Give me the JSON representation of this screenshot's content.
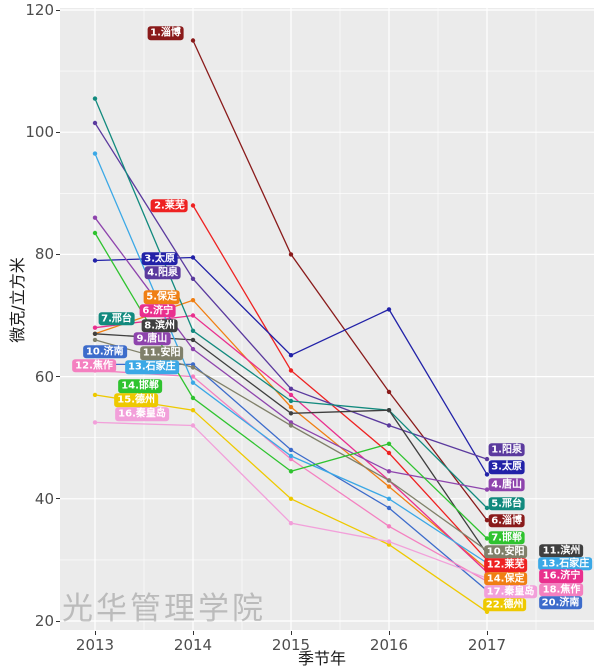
{
  "watermark": "光华管理学院",
  "axes": {
    "x_title": "季节年",
    "y_title": "微克/立方米",
    "x_ticks": [
      "2013",
      "2014",
      "2015",
      "2016",
      "2017"
    ],
    "y_ticks": [
      "20",
      "40",
      "60",
      "80",
      "100",
      "120"
    ]
  },
  "panel_background": "#EBEBEB",
  "chart_data": {
    "type": "line",
    "x": [
      2013,
      2014,
      2015,
      2016,
      2017
    ],
    "xlabel": "季节年",
    "ylabel": "微克/立方米",
    "xlim": [
      2012.64,
      2018.09
    ],
    "ylim": [
      18.5,
      120.5
    ],
    "grid": {
      "major_y": [
        20,
        40,
        60,
        80,
        100,
        120
      ],
      "minor_y": [
        30,
        50,
        70,
        90,
        110
      ],
      "major_x": [
        2013,
        2014,
        2015,
        2016,
        2017
      ],
      "minor_x": [
        2013.5,
        2014.5,
        2015.5,
        2016.5,
        2017.5
      ],
      "grid_color": "#FFFFFF",
      "legend": "none, series labeled directly with rank.city labels at line ends"
    },
    "series": [
      {
        "city": "淄博",
        "rank_start": 1,
        "rank_end": 6,
        "color": "#8A1B1B",
        "values": [
          null,
          115,
          80,
          57.5,
          36.5
        ]
      },
      {
        "city": "莱芜",
        "rank_start": 2,
        "rank_end": 12,
        "color": "#EE2222",
        "values": [
          null,
          88,
          61,
          47.5,
          30
        ]
      },
      {
        "city": "太原",
        "rank_start": 3,
        "rank_end": 3,
        "color": "#2222A8",
        "values": [
          79,
          79.5,
          63.5,
          71,
          44
        ]
      },
      {
        "city": "阳泉",
        "rank_start": 4,
        "rank_end": 1,
        "color": "#5B3A9E",
        "values": [
          101.5,
          76,
          58,
          52,
          46.5
        ]
      },
      {
        "city": "保定",
        "rank_start": 5,
        "rank_end": 14,
        "color": "#F07F13",
        "values": [
          67,
          72.5,
          55,
          42,
          28.5
        ]
      },
      {
        "city": "济宁",
        "rank_start": 6,
        "rank_end": 16,
        "color": "#E9308E",
        "values": [
          68,
          70,
          57,
          43,
          28
        ]
      },
      {
        "city": "邢台",
        "rank_start": 7,
        "rank_end": 5,
        "color": "#128A7E",
        "values": [
          105.5,
          67.5,
          56,
          54.5,
          38.5
        ]
      },
      {
        "city": "滨州",
        "rank_start": 8,
        "rank_end": 11,
        "color": "#3F3F3F",
        "values": [
          67,
          66,
          54,
          54.5,
          31
        ]
      },
      {
        "city": "唐山",
        "rank_start": 9,
        "rank_end": 4,
        "color": "#8E44AD",
        "values": [
          86,
          64.5,
          52.5,
          44.5,
          41.5
        ]
      },
      {
        "city": "济南",
        "rank_start": 10,
        "rank_end": 20,
        "color": "#3D6CCB",
        "values": [
          62,
          62,
          48,
          38.5,
          25
        ]
      },
      {
        "city": "安阳",
        "rank_start": 11,
        "rank_end": 10,
        "color": "#80806A",
        "values": [
          66,
          61.5,
          52,
          43,
          31.5
        ]
      },
      {
        "city": "焦作",
        "rank_start": 12,
        "rank_end": 18,
        "color": "#F480C0",
        "values": [
          61,
          60,
          46.5,
          35.5,
          26.5
        ]
      },
      {
        "city": "石家庄",
        "rank_start": 13,
        "rank_end": 13,
        "color": "#3BA8E6",
        "values": [
          96.5,
          59,
          47,
          40,
          29.5
        ]
      },
      {
        "city": "邯郸",
        "rank_start": 14,
        "rank_end": 7,
        "color": "#2FC32F",
        "values": [
          83.5,
          56.5,
          44.5,
          49,
          33.5
        ]
      },
      {
        "city": "德州",
        "rank_start": 15,
        "rank_end": 22,
        "color": "#EEC900",
        "values": [
          57,
          54.5,
          40,
          32.5,
          21.5
        ]
      },
      {
        "city": "秦皇岛",
        "rank_start": 16,
        "rank_end": 17,
        "color": "#F2A0DA",
        "values": [
          52.5,
          52,
          36,
          33,
          27
        ]
      }
    ],
    "start_labels": [
      {
        "text": "1.淄博",
        "x": 2013.72,
        "y": 116.2
      },
      {
        "text": "2.莱芜",
        "x": 2013.76,
        "y": 88.0
      },
      {
        "text": "3.太原",
        "x": 2013.66,
        "y": 79.3
      },
      {
        "text": "4.阳泉",
        "x": 2013.69,
        "y": 77.0
      },
      {
        "text": "5.保定",
        "x": 2013.68,
        "y": 73.0
      },
      {
        "text": "6.济宁",
        "x": 2013.64,
        "y": 70.8
      },
      {
        "text": "7.邢台",
        "x": 2013.22,
        "y": 69.5
      },
      {
        "text": "8.滨州",
        "x": 2013.66,
        "y": 68.3
      },
      {
        "text": "9.唐山",
        "x": 2013.58,
        "y": 66.2
      },
      {
        "text": "10.济南",
        "x": 2013.1,
        "y": 64.1
      },
      {
        "text": "11.安阳",
        "x": 2013.68,
        "y": 63.8
      },
      {
        "text": "12.焦作",
        "x": 2012.99,
        "y": 61.8
      },
      {
        "text": "13.石家庄",
        "x": 2013.58,
        "y": 61.5
      },
      {
        "text": "14.邯郸",
        "x": 2013.46,
        "y": 58.4
      },
      {
        "text": "15.德州",
        "x": 2013.42,
        "y": 56.1
      },
      {
        "text": "16.秦皇岛",
        "x": 2013.48,
        "y": 53.8
      }
    ],
    "end_labels": [
      {
        "text": "1.阳泉",
        "x": 2017.2,
        "y": 48.0
      },
      {
        "text": "3.太原",
        "x": 2017.2,
        "y": 45.2
      },
      {
        "text": "4.唐山",
        "x": 2017.2,
        "y": 42.3
      },
      {
        "text": "5.邢台",
        "x": 2017.2,
        "y": 39.2
      },
      {
        "text": "6.淄博",
        "x": 2017.2,
        "y": 36.4
      },
      {
        "text": "7.邯郸",
        "x": 2017.2,
        "y": 33.6
      },
      {
        "text": "10.安阳",
        "x": 2017.19,
        "y": 31.3
      },
      {
        "text": "12.莱芜",
        "x": 2017.19,
        "y": 29.1
      },
      {
        "text": "14.保定",
        "x": 2017.19,
        "y": 26.9
      },
      {
        "text": "17.秦皇岛",
        "x": 2017.24,
        "y": 24.8
      },
      {
        "text": "22.德州",
        "x": 2017.18,
        "y": 22.7
      },
      {
        "text": "11.滨州",
        "x": 2017.76,
        "y": 31.5
      },
      {
        "text": "13.石家庄",
        "x": 2017.8,
        "y": 29.4
      },
      {
        "text": "16.济宁",
        "x": 2017.76,
        "y": 27.3
      },
      {
        "text": "18.焦作",
        "x": 2017.76,
        "y": 25.1
      },
      {
        "text": "20.济南",
        "x": 2017.75,
        "y": 23.0
      }
    ]
  }
}
